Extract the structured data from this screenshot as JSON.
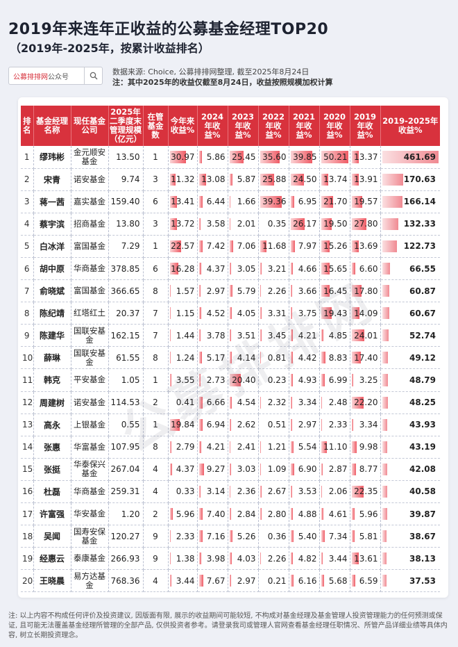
{
  "header": {
    "title": "2019年来连年正收益的公募基金经理TOP20",
    "subtitle": "（2019年-2025年，按累计收益排名）",
    "search_brand": "公募排排网",
    "search_brand_suffix": "公众号",
    "source": "数据来源: Choice, 公募排排网整理, 截至2025年8月24日",
    "note": "注：其中2025年的收益仅截至8月24日，收益按照规模加权计算"
  },
  "watermark": "公募排排网",
  "table": {
    "columns": [
      "排名",
      "基金经理名称",
      "现任基金公司",
      "2025年二季度末管理规模（亿元）",
      "在管基金数",
      "今年来收益%",
      "2024年收益%",
      "2023年收益%",
      "2022年收益%",
      "2021年收益%",
      "2020年收益%",
      "2019年收益%",
      "2019-2025年收益%"
    ],
    "rows": [
      {
        "rank": "1",
        "name": "缪玮彬",
        "company": "金元顺安基金",
        "aum": "13.50",
        "funds": "1",
        "y2025": "30.97",
        "y2024": "5.86",
        "y2023": "25.45",
        "y2022": "35.60",
        "y2021": "39.85",
        "y2020": "50.21",
        "y2019": "13.37",
        "total": "461.69"
      },
      {
        "rank": "2",
        "name": "宋青",
        "company": "诺安基金",
        "aum": "9.74",
        "funds": "3",
        "y2025": "11.32",
        "y2024": "13.08",
        "y2023": "5.87",
        "y2022": "25.88",
        "y2021": "24.50",
        "y2020": "13.74",
        "y2019": "13.91",
        "total": "170.63"
      },
      {
        "rank": "3",
        "name": "蒋一茜",
        "company": "嘉实基金",
        "aum": "159.40",
        "funds": "6",
        "y2025": "13.41",
        "y2024": "6.44",
        "y2023": "1.66",
        "y2022": "39.36",
        "y2021": "6.95",
        "y2020": "21.70",
        "y2019": "19.57",
        "total": "166.14"
      },
      {
        "rank": "4",
        "name": "蔡宇滨",
        "company": "招商基金",
        "aum": "13.80",
        "funds": "3",
        "y2025": "13.72",
        "y2024": "3.58",
        "y2023": "2.01",
        "y2022": "0.35",
        "y2021": "26.17",
        "y2020": "19.50",
        "y2019": "27.80",
        "total": "132.33"
      },
      {
        "rank": "5",
        "name": "白冰洋",
        "company": "富国基金",
        "aum": "7.29",
        "funds": "1",
        "y2025": "22.57",
        "y2024": "7.42",
        "y2023": "7.06",
        "y2022": "11.68",
        "y2021": "7.97",
        "y2020": "15.26",
        "y2019": "13.69",
        "total": "122.73"
      },
      {
        "rank": "6",
        "name": "胡中原",
        "company": "华商基金",
        "aum": "378.85",
        "funds": "6",
        "y2025": "16.28",
        "y2024": "4.37",
        "y2023": "3.05",
        "y2022": "3.21",
        "y2021": "4.66",
        "y2020": "15.65",
        "y2019": "6.60",
        "total": "66.55"
      },
      {
        "rank": "7",
        "name": "俞晓斌",
        "company": "富国基金",
        "aum": "366.65",
        "funds": "8",
        "y2025": "1.57",
        "y2024": "2.97",
        "y2023": "5.79",
        "y2022": "2.26",
        "y2021": "3.66",
        "y2020": "16.45",
        "y2019": "17.80",
        "total": "60.87"
      },
      {
        "rank": "8",
        "name": "陈纪靖",
        "company": "红塔红土",
        "aum": "20.37",
        "funds": "7",
        "y2025": "1.15",
        "y2024": "4.52",
        "y2023": "4.05",
        "y2022": "3.31",
        "y2021": "3.75",
        "y2020": "19.43",
        "y2019": "14.09",
        "total": "60.67"
      },
      {
        "rank": "9",
        "name": "陈建华",
        "company": "国联安基金",
        "aum": "162.15",
        "funds": "7",
        "y2025": "1.44",
        "y2024": "3.78",
        "y2023": "3.51",
        "y2022": "3.45",
        "y2021": "4.21",
        "y2020": "4.85",
        "y2019": "24.01",
        "total": "52.74"
      },
      {
        "rank": "10",
        "name": "薛琳",
        "company": "国联安基金",
        "aum": "61.55",
        "funds": "8",
        "y2025": "1.24",
        "y2024": "5.17",
        "y2023": "4.14",
        "y2022": "0.81",
        "y2021": "4.42",
        "y2020": "8.83",
        "y2019": "17.40",
        "total": "49.12"
      },
      {
        "rank": "11",
        "name": "韩克",
        "company": "平安基金",
        "aum": "1.05",
        "funds": "1",
        "y2025": "3.55",
        "y2024": "2.73",
        "y2023": "20.40",
        "y2022": "0.23",
        "y2021": "4.93",
        "y2020": "6.99",
        "y2019": "3.25",
        "total": "48.79"
      },
      {
        "rank": "12",
        "name": "周建树",
        "company": "诺安基金",
        "aum": "114.53",
        "funds": "2",
        "y2025": "0.41",
        "y2024": "6.66",
        "y2023": "4.54",
        "y2022": "2.32",
        "y2021": "3.34",
        "y2020": "2.48",
        "y2019": "22.20",
        "total": "48.25"
      },
      {
        "rank": "13",
        "name": "高永",
        "company": "上银基金",
        "aum": "0.55",
        "funds": "1",
        "y2025": "19.84",
        "y2024": "6.94",
        "y2023": "2.62",
        "y2022": "0.51",
        "y2021": "2.97",
        "y2020": "2.33",
        "y2019": "3.34",
        "total": "43.93"
      },
      {
        "rank": "14",
        "name": "张惠",
        "company": "华富基金",
        "aum": "107.95",
        "funds": "8",
        "y2025": "2.79",
        "y2024": "4.21",
        "y2023": "2.41",
        "y2022": "1.21",
        "y2021": "5.54",
        "y2020": "11.10",
        "y2019": "9.98",
        "total": "43.19"
      },
      {
        "rank": "15",
        "name": "张挺",
        "company": "华泰保兴基金",
        "aum": "267.04",
        "funds": "4",
        "y2025": "4.37",
        "y2024": "9.27",
        "y2023": "3.03",
        "y2022": "1.09",
        "y2021": "6.90",
        "y2020": "2.87",
        "y2019": "8.77",
        "total": "42.08"
      },
      {
        "rank": "16",
        "name": "杜磊",
        "company": "华商基金",
        "aum": "259.31",
        "funds": "4",
        "y2025": "0.33",
        "y2024": "3.14",
        "y2023": "2.36",
        "y2022": "2.67",
        "y2021": "3.53",
        "y2020": "2.06",
        "y2019": "22.35",
        "total": "40.58"
      },
      {
        "rank": "17",
        "name": "许富强",
        "company": "华安基金",
        "aum": "1.20",
        "funds": "2",
        "y2025": "5.96",
        "y2024": "7.40",
        "y2023": "2.84",
        "y2022": "2.80",
        "y2021": "4.88",
        "y2020": "4.61",
        "y2019": "5.96",
        "total": "39.87"
      },
      {
        "rank": "18",
        "name": "吴闻",
        "company": "国寿安保基金",
        "aum": "120.27",
        "funds": "9",
        "y2025": "2.33",
        "y2024": "7.16",
        "y2023": "5.26",
        "y2022": "0.36",
        "y2021": "5.40",
        "y2020": "7.34",
        "y2019": "5.81",
        "total": "38.67"
      },
      {
        "rank": "19",
        "name": "经惠云",
        "company": "泰康基金",
        "aum": "266.93",
        "funds": "9",
        "y2025": "1.38",
        "y2024": "3.98",
        "y2023": "4.03",
        "y2022": "2.26",
        "y2021": "4.82",
        "y2020": "3.44",
        "y2019": "13.61",
        "total": "38.13"
      },
      {
        "rank": "20",
        "name": "王晓晨",
        "company": "易方达基金",
        "aum": "768.36",
        "funds": "4",
        "y2025": "3.44",
        "y2024": "7.67",
        "y2023": "2.97",
        "y2022": "0.21",
        "y2021": "6.16",
        "y2020": "5.68",
        "y2019": "6.59",
        "total": "37.53"
      }
    ]
  },
  "footer": "注: 以上内容不构成任何评价及投资建议, 因版面有限, 展示的收益期间可能较短, 不构成对基金经理及基金管理人投资管理能力的任何预测或保证, 且可能无法覆盖基金经理所管理的全部产品, 仅供投资者参考。请登录我司或管理人官网查看基金经理任职情况、所管产品详细业绩等具体内容, 树立长期投资理念。",
  "colors": {
    "header_red": "#d8323d",
    "bar_red": "#ef5c66"
  }
}
